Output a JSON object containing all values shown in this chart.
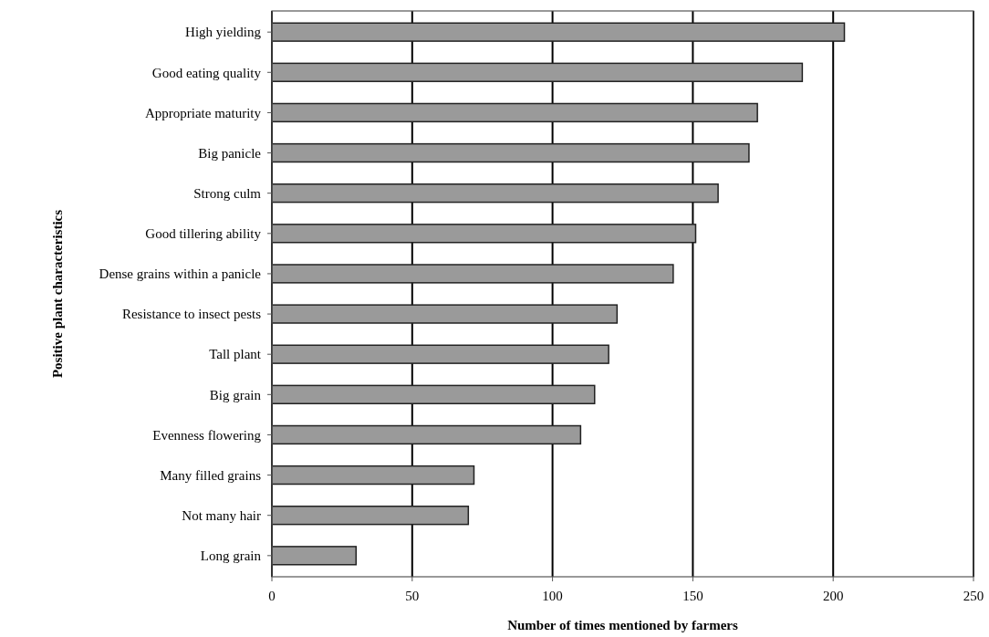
{
  "chart_data": {
    "type": "bar",
    "orientation": "horizontal",
    "xlabel": "Number of times mentioned by farmers",
    "ylabel": "Positive plant characteristics",
    "categories": [
      "High yielding",
      "Good eating quality",
      "Appropriate maturity",
      "Big panicle",
      "Strong culm",
      "Good tillering ability",
      "Dense grains within a panicle",
      "Resistance to insect pests",
      "Tall plant",
      "Big grain",
      "Evenness flowering",
      "Many filled grains",
      "Not many hair",
      "Long grain"
    ],
    "values": [
      204,
      189,
      173,
      170,
      159,
      151,
      143,
      123,
      120,
      115,
      110,
      72,
      70,
      30
    ],
    "color": "#9a9a9a",
    "xlim": [
      0,
      250
    ],
    "xticks": [
      0,
      50,
      100,
      150,
      200,
      250
    ],
    "grid": "x"
  }
}
